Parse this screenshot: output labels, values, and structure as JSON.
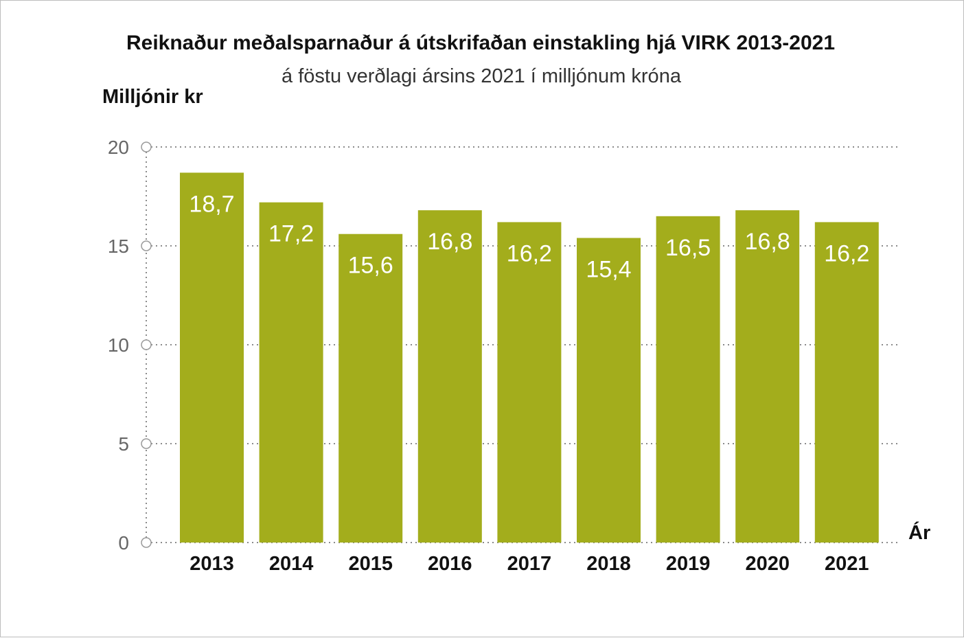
{
  "chart_data": {
    "type": "bar",
    "title": "Reiknaður meðalsparnaður á útskrifaðan einstakling hjá VIRK 2013-2021",
    "subtitle": "á föstu verðlagi ársins 2021 í milljónum króna",
    "ylabel": "Milljónir kr",
    "xlabel": "Ár",
    "categories": [
      "2013",
      "2014",
      "2015",
      "2016",
      "2017",
      "2018",
      "2019",
      "2020",
      "2021"
    ],
    "values": [
      18.7,
      17.2,
      15.6,
      16.8,
      16.2,
      15.4,
      16.5,
      16.8,
      16.2
    ],
    "value_labels": [
      "18,7",
      "17,2",
      "15,6",
      "16,8",
      "16,2",
      "15,4",
      "16,5",
      "16,8",
      "16,2"
    ],
    "ylim": [
      0,
      20
    ],
    "yticks": [
      0,
      5,
      10,
      15,
      20
    ],
    "ytick_labels": [
      "0",
      "5",
      "10",
      "15",
      "20"
    ],
    "grid": true,
    "legend": "none",
    "bar_color": "#a3ad1c"
  }
}
